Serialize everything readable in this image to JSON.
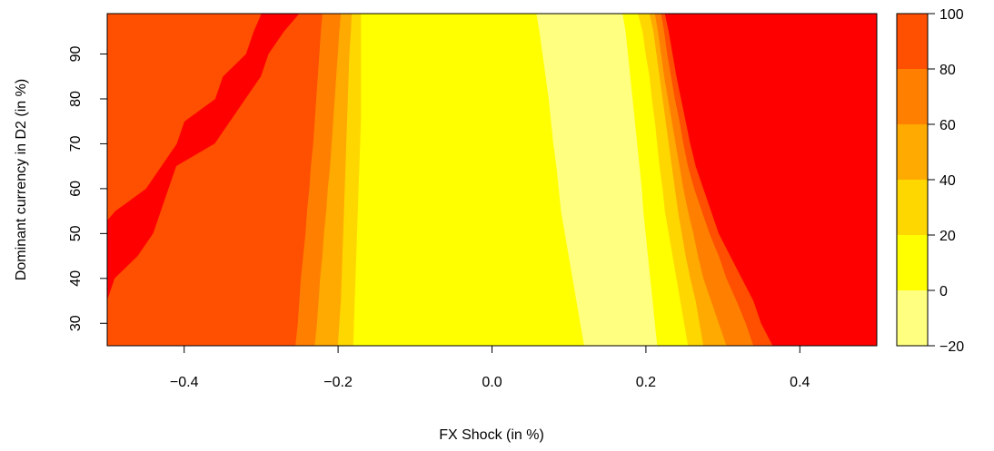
{
  "chart_data": {
    "type": "heatmap",
    "title": "",
    "xlabel": "FX Shock (in %)",
    "ylabel": "Dominant currency in D2 (in %)",
    "xlim": [
      -0.5,
      0.5
    ],
    "ylim": [
      25,
      99
    ],
    "x_ticks": [
      -0.4,
      -0.2,
      0.0,
      0.2,
      0.4
    ],
    "x_tick_labels": [
      "−0.4",
      "−0.2",
      "0.0",
      "0.2",
      "0.4"
    ],
    "y_ticks": [
      30,
      40,
      50,
      60,
      70,
      80,
      90
    ],
    "y_tick_labels": [
      "30",
      "40",
      "50",
      "60",
      "70",
      "80",
      "90"
    ],
    "colorbar": {
      "levels": [
        -20,
        0,
        20,
        40,
        60,
        80,
        100
      ],
      "labels": [
        "−20",
        "0",
        "20",
        "40",
        "60",
        "80",
        "100"
      ],
      "colors": [
        "#FFFF80",
        "#FFFF00",
        "#FFD700",
        "#FFAA00",
        "#FF8000",
        "#FF4F00",
        "#FF0000"
      ]
    },
    "bands": [
      {
        "color": "#FF0000",
        "from": -0.5,
        "to": [
          -0.5,
          -0.5,
          -0.5,
          -0.49,
          -0.46,
          -0.44,
          -0.43,
          -0.42,
          -0.41,
          -0.36,
          -0.34,
          -0.32,
          -0.3,
          -0.29,
          -0.27,
          -0.25
        ]
      },
      {
        "color": "#FF4F00",
        "from": "prev",
        "to": [
          -0.255,
          -0.252,
          -0.25,
          -0.248,
          -0.245,
          -0.242,
          -0.24,
          -0.237,
          -0.235,
          -0.232,
          -0.23,
          -0.228,
          -0.226,
          -0.224,
          -0.222,
          -0.22
        ]
      },
      {
        "color": "#FF8000",
        "from": "prev",
        "to": [
          -0.23,
          -0.227,
          -0.225,
          -0.223,
          -0.22,
          -0.218,
          -0.215,
          -0.213,
          -0.21,
          -0.208,
          -0.206,
          -0.204,
          -0.202,
          -0.2,
          -0.198,
          -0.196
        ]
      },
      {
        "color": "#FFAA00",
        "from": "prev",
        "to": [
          -0.2,
          -0.198,
          -0.196,
          -0.195,
          -0.194,
          -0.193,
          -0.192,
          -0.191,
          -0.19,
          -0.189,
          -0.188,
          -0.187,
          -0.186,
          -0.185,
          -0.183,
          -0.182
        ]
      },
      {
        "color": "#FFD700",
        "from": "prev",
        "to": [
          -0.18,
          -0.179,
          -0.178,
          -0.177,
          -0.176,
          -0.175,
          -0.174,
          -0.173,
          -0.172,
          -0.171,
          -0.17,
          -0.17,
          -0.17,
          -0.17,
          -0.17,
          -0.17
        ]
      },
      {
        "color": "#FFFF00",
        "from": "prev",
        "to": [
          0.12,
          0.115,
          0.11,
          0.105,
          0.1,
          0.095,
          0.09,
          0.087,
          0.084,
          0.08,
          0.077,
          0.074,
          0.07,
          0.066,
          0.062,
          0.058
        ]
      },
      {
        "color": "#FFFF80",
        "from": "prev",
        "to": [
          0.215,
          0.212,
          0.209,
          0.206,
          0.203,
          0.2,
          0.197,
          0.195,
          0.192,
          0.189,
          0.186,
          0.183,
          0.18,
          0.177,
          0.174,
          0.17
        ]
      },
      {
        "color": "#FFFF00",
        "from": "prev",
        "to": [
          0.255,
          0.25,
          0.245,
          0.24,
          0.235,
          0.23,
          0.225,
          0.222,
          0.218,
          0.215,
          0.212,
          0.208,
          0.205,
          0.2,
          0.196,
          0.19
        ]
      },
      {
        "color": "#FFD700",
        "from": "prev",
        "to": [
          0.275,
          0.27,
          0.265,
          0.258,
          0.252,
          0.247,
          0.242,
          0.238,
          0.234,
          0.23,
          0.226,
          0.222,
          0.218,
          0.214,
          0.21,
          0.205
        ]
      },
      {
        "color": "#FFAA00",
        "from": "prev",
        "to": [
          0.305,
          0.295,
          0.285,
          0.275,
          0.268,
          0.262,
          0.255,
          0.249,
          0.244,
          0.239,
          0.234,
          0.229,
          0.224,
          0.22,
          0.216,
          0.212
        ]
      },
      {
        "color": "#FF8000",
        "from": "prev",
        "to": [
          0.34,
          0.33,
          0.318,
          0.305,
          0.295,
          0.283,
          0.273,
          0.263,
          0.255,
          0.249,
          0.244,
          0.238,
          0.233,
          0.228,
          0.224,
          0.22
        ]
      },
      {
        "color": "#FF4F00",
        "from": "prev",
        "to": [
          0.365,
          0.35,
          0.34,
          0.325,
          0.31,
          0.295,
          0.285,
          0.275,
          0.265,
          0.258,
          0.252,
          0.246,
          0.24,
          0.235,
          0.23,
          0.225
        ]
      },
      {
        "color": "#FF0000",
        "from": "prev",
        "to": [
          0.5,
          0.5,
          0.5,
          0.5,
          0.5,
          0.5,
          0.5,
          0.5,
          0.5,
          0.5,
          0.5,
          0.5,
          0.5,
          0.5,
          0.5,
          0.5
        ]
      }
    ],
    "band_rows_y": [
      25,
      30,
      35,
      40,
      45,
      50,
      55,
      60,
      65,
      70,
      75,
      80,
      85,
      90,
      95,
      99
    ],
    "upper_left_orange": {
      "color": "#FF4F00",
      "right_edge": [
        null,
        null,
        null,
        null,
        null,
        null,
        -0.49,
        -0.45,
        -0.43,
        -0.41,
        -0.4,
        -0.36,
        -0.35,
        -0.32,
        -0.31,
        -0.3
      ]
    }
  }
}
